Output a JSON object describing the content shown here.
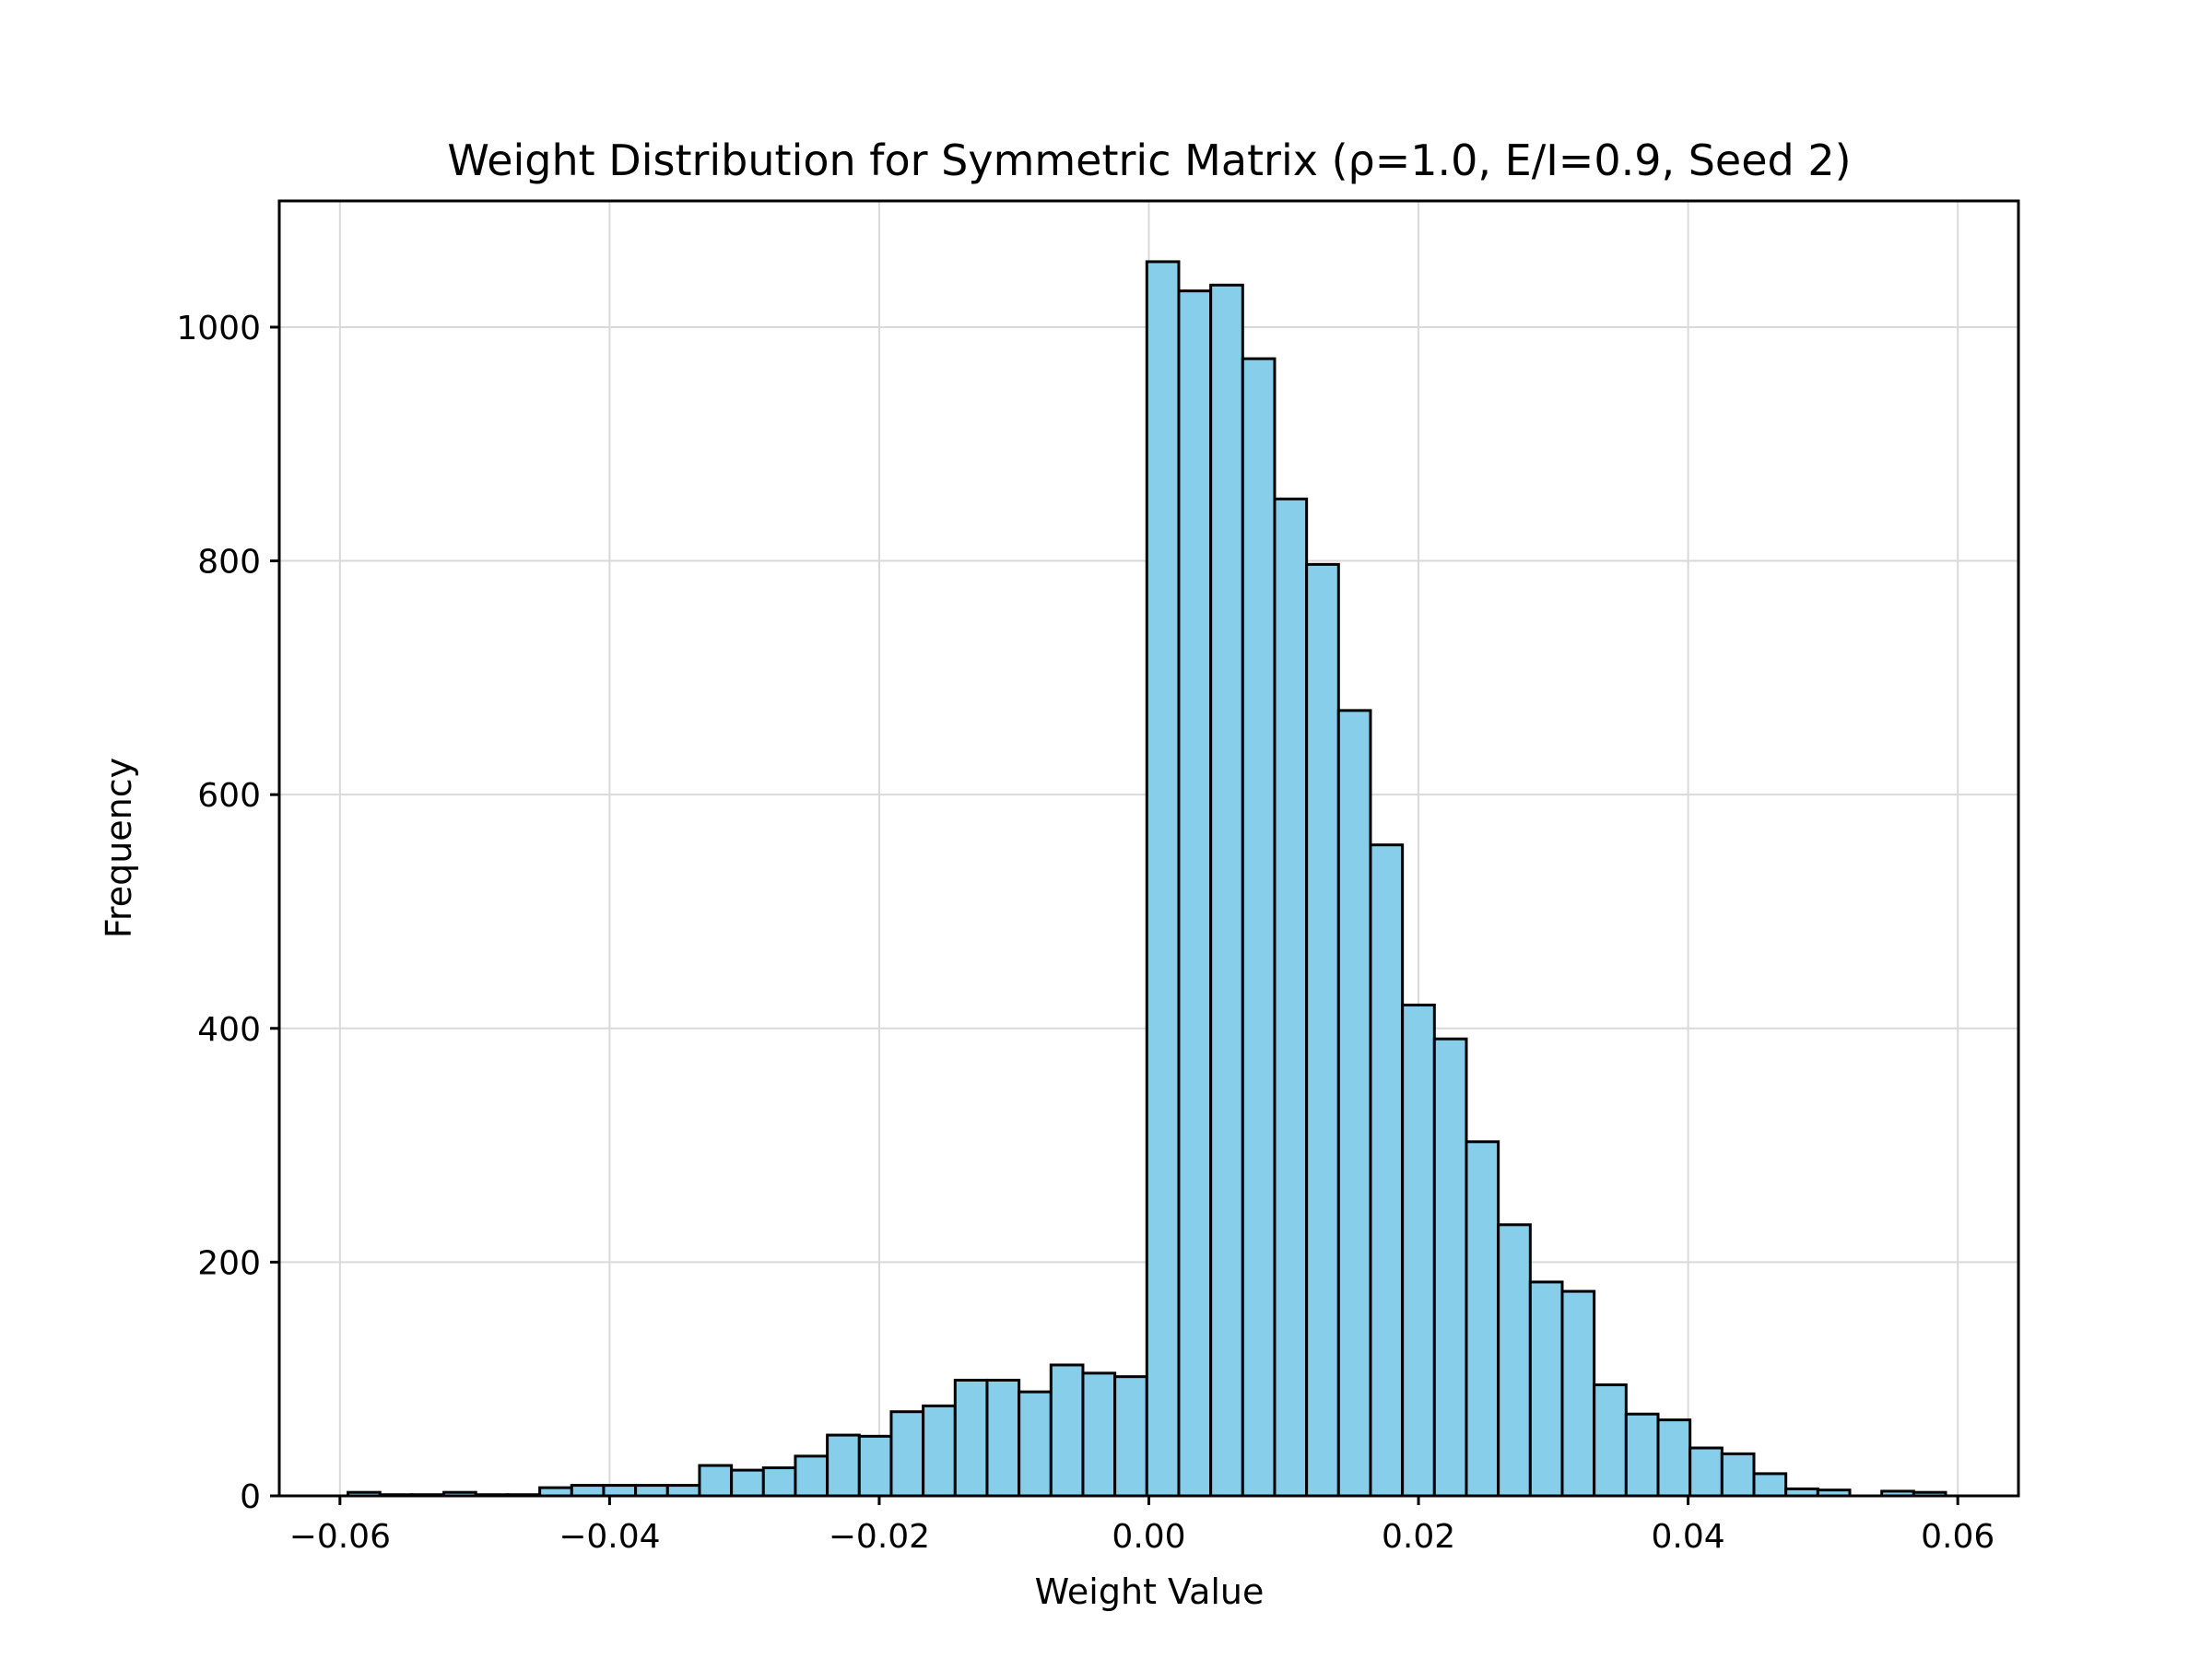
{
  "chart_data": {
    "type": "bar",
    "title": "Weight Distribution for Symmetric Matrix (ρ=1.0, E/I=0.9, Seed 2)",
    "xlabel": "Weight Value",
    "ylabel": "Frequency",
    "xlim": [
      -0.0645,
      0.0645
    ],
    "ylim": [
      0,
      1108
    ],
    "grid": true,
    "bar_color": "#87ceeb",
    "edge_color": "#000000",
    "x_ticks": [
      -0.06,
      -0.04,
      -0.02,
      0.0,
      0.02,
      0.04,
      0.06
    ],
    "x_tick_labels": [
      "−0.06",
      "−0.04",
      "−0.02",
      "0.00",
      "0.02",
      "0.04",
      "0.06"
    ],
    "y_ticks": [
      0,
      200,
      400,
      600,
      800,
      1000
    ],
    "y_tick_labels": [
      "0",
      "200",
      "400",
      "600",
      "800",
      "1000"
    ],
    "bin_start": -0.0594,
    "bin_width": 0.00237,
    "values": [
      3,
      1,
      1,
      3,
      1,
      1,
      7,
      9,
      9,
      9,
      9,
      26,
      22,
      24,
      34,
      52,
      51,
      72,
      77,
      99,
      99,
      89,
      112,
      105,
      102,
      1056,
      1031,
      1036,
      973,
      853,
      797,
      672,
      557,
      420,
      391,
      303,
      232,
      183,
      175,
      95,
      70,
      65,
      41,
      36,
      19,
      6,
      5,
      0,
      4,
      3
    ]
  }
}
